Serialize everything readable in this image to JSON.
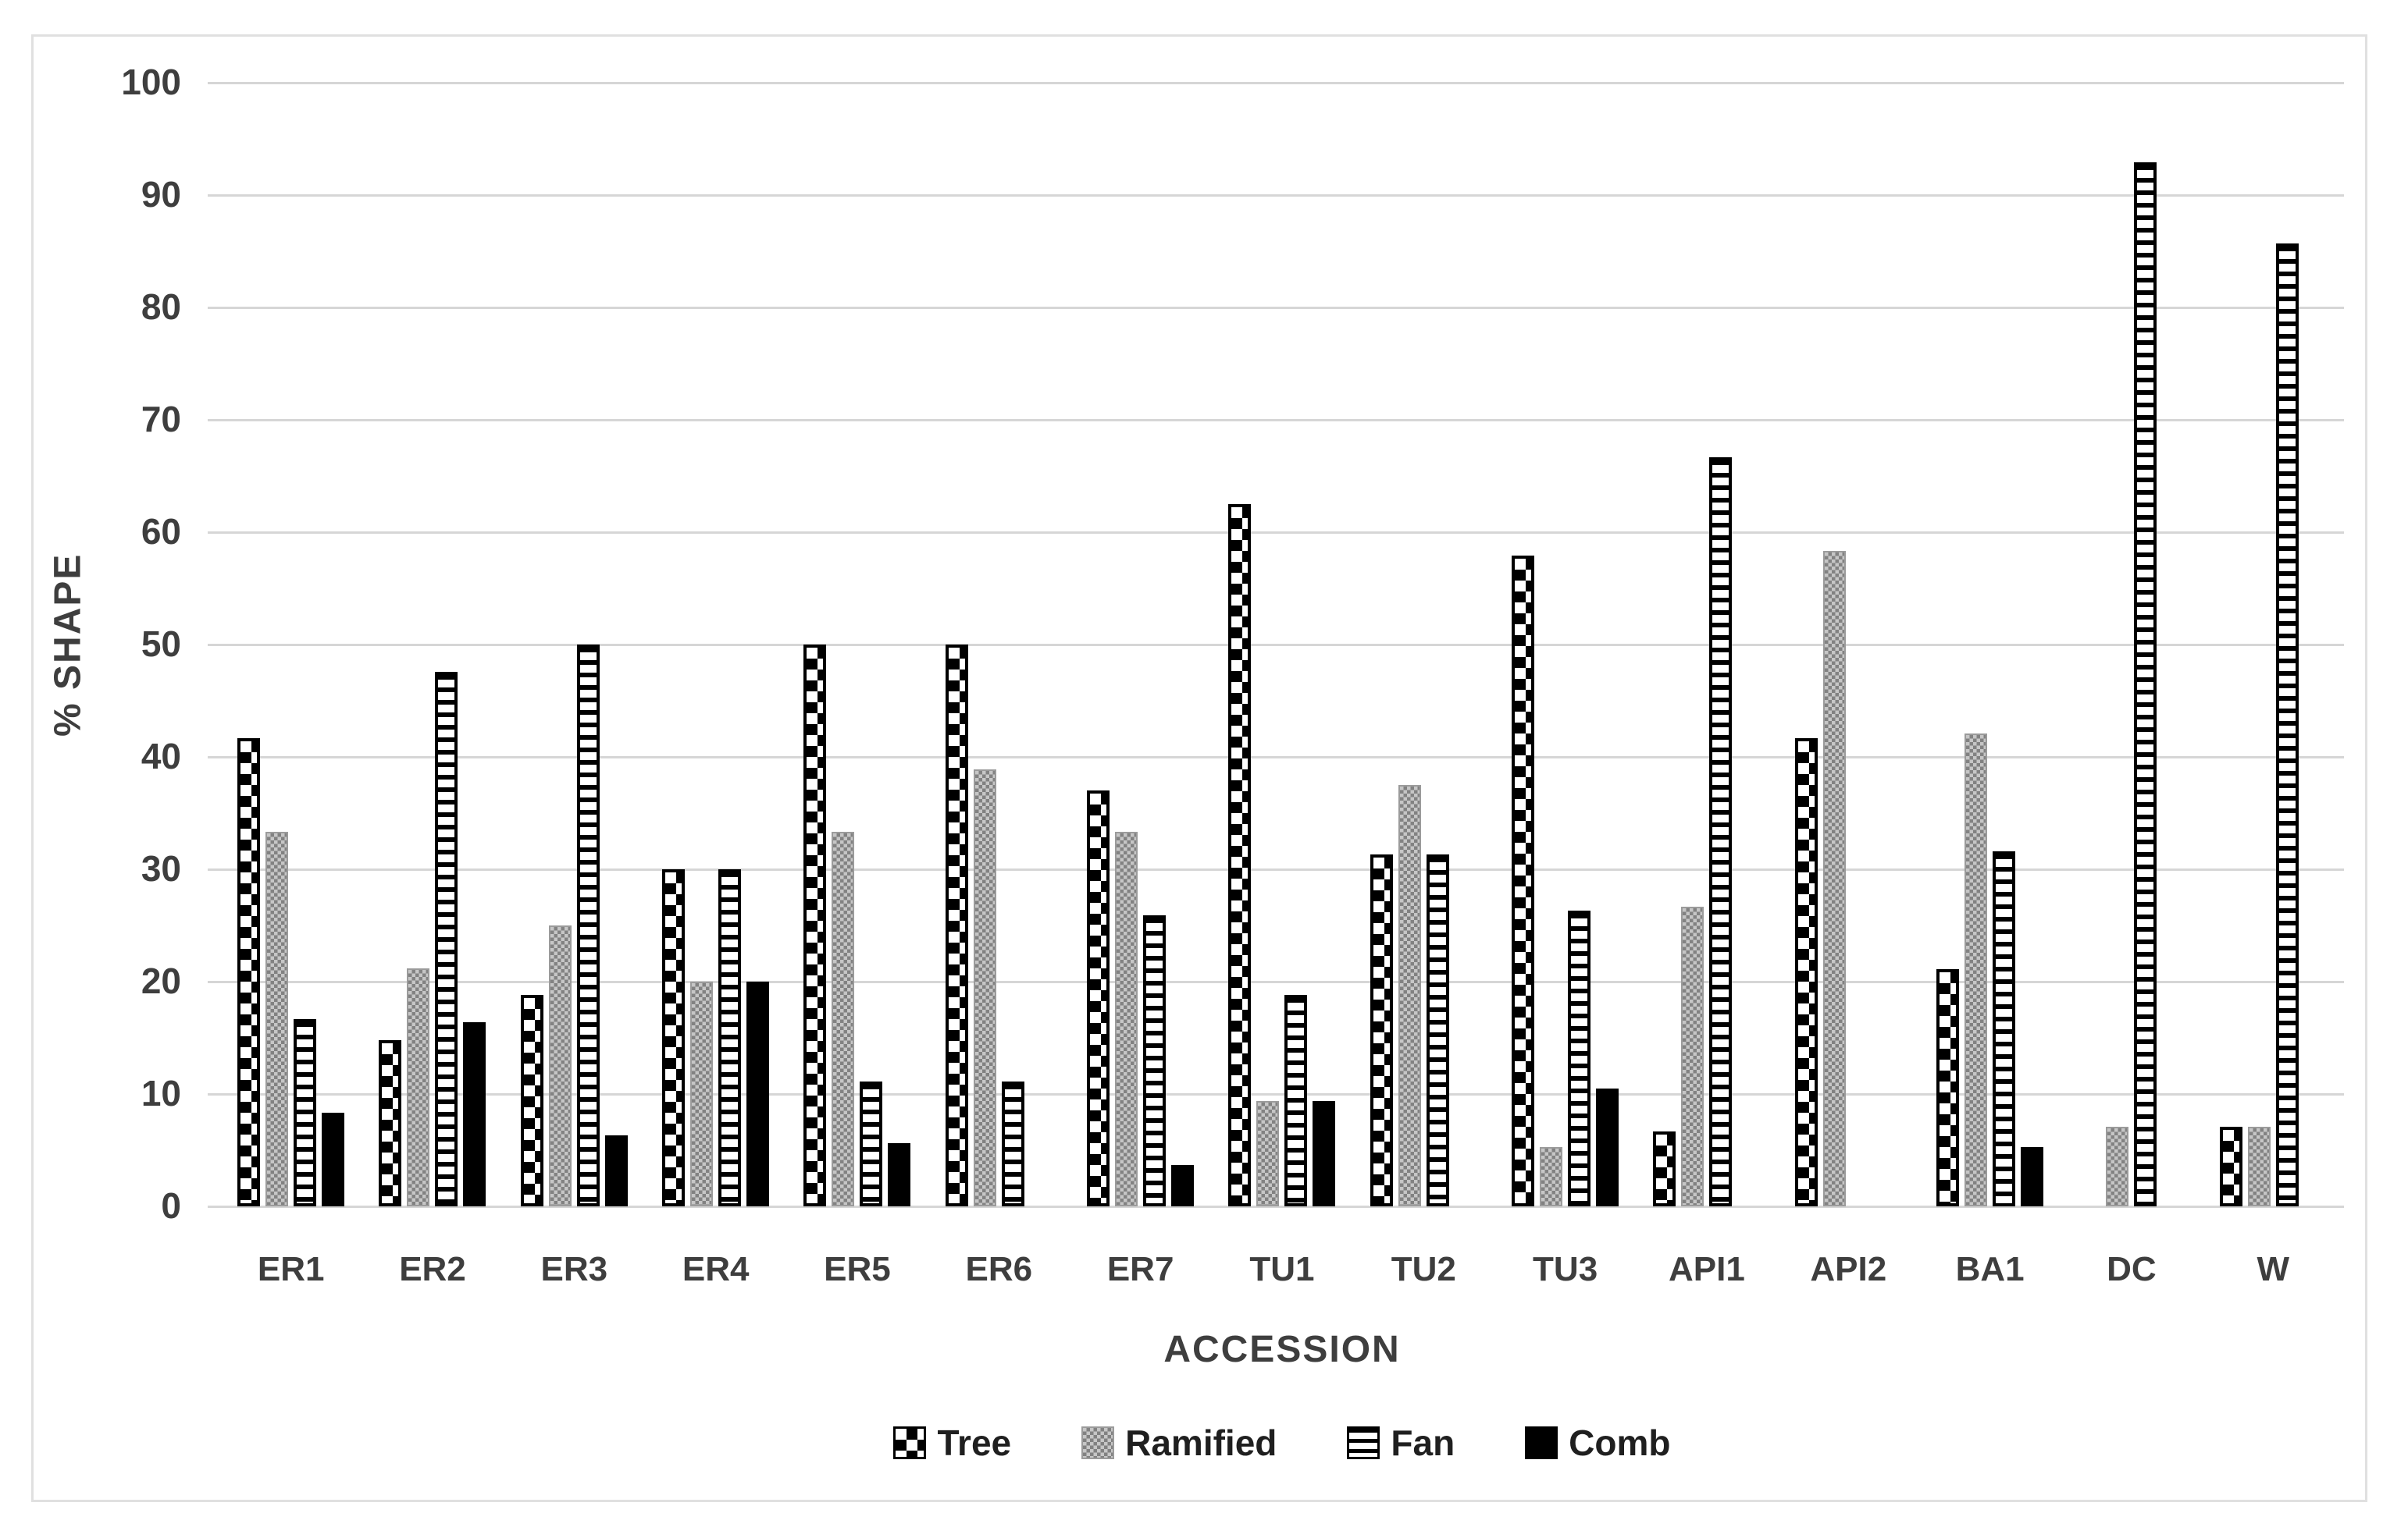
{
  "figure": {
    "background": "#ffffff",
    "frame_color": "#e0e0e0",
    "text_color": "#3e3e3e",
    "gridline_color": "#d6d6d6"
  },
  "chart_data": {
    "type": "bar",
    "title": "",
    "xlabel": "ACCESSION",
    "ylabel": "% SHAPE",
    "ylim": [
      0,
      100
    ],
    "yticks": [
      0,
      10,
      20,
      30,
      40,
      50,
      60,
      70,
      80,
      90,
      100
    ],
    "grid": "horizontal",
    "legend_position": "bottom",
    "categories": [
      "ER1",
      "ER2",
      "ER3",
      "ER4",
      "ER5",
      "ER6",
      "ER7",
      "TU1",
      "TU2",
      "TU3",
      "API1",
      "API2",
      "BA1",
      "DC",
      "W"
    ],
    "series": [
      {
        "name": "Tree",
        "pattern": "checkerboard-black-white",
        "values": [
          41.7,
          14.8,
          18.8,
          30,
          50,
          50,
          37,
          62.5,
          31.3,
          57.9,
          6.7,
          41.7,
          21.1,
          0,
          7.1
        ]
      },
      {
        "name": "Ramified",
        "pattern": "gray-dot-texture",
        "values": [
          33.3,
          21.2,
          25,
          20,
          33.3,
          38.9,
          33.3,
          9.4,
          37.5,
          5.3,
          26.7,
          58.3,
          42.1,
          7.1,
          7.1
        ]
      },
      {
        "name": "Fan",
        "pattern": "horizontal-stripes",
        "values": [
          16.7,
          47.6,
          50,
          30,
          11.1,
          11.1,
          25.9,
          18.8,
          31.3,
          26.3,
          66.7,
          0,
          31.6,
          92.9,
          85.7
        ]
      },
      {
        "name": "Comb",
        "pattern": "solid-black",
        "values": [
          8.3,
          16.4,
          6.3,
          20,
          5.6,
          0,
          3.7,
          9.4,
          0,
          10.5,
          0,
          0,
          5.3,
          0,
          0
        ]
      }
    ]
  }
}
